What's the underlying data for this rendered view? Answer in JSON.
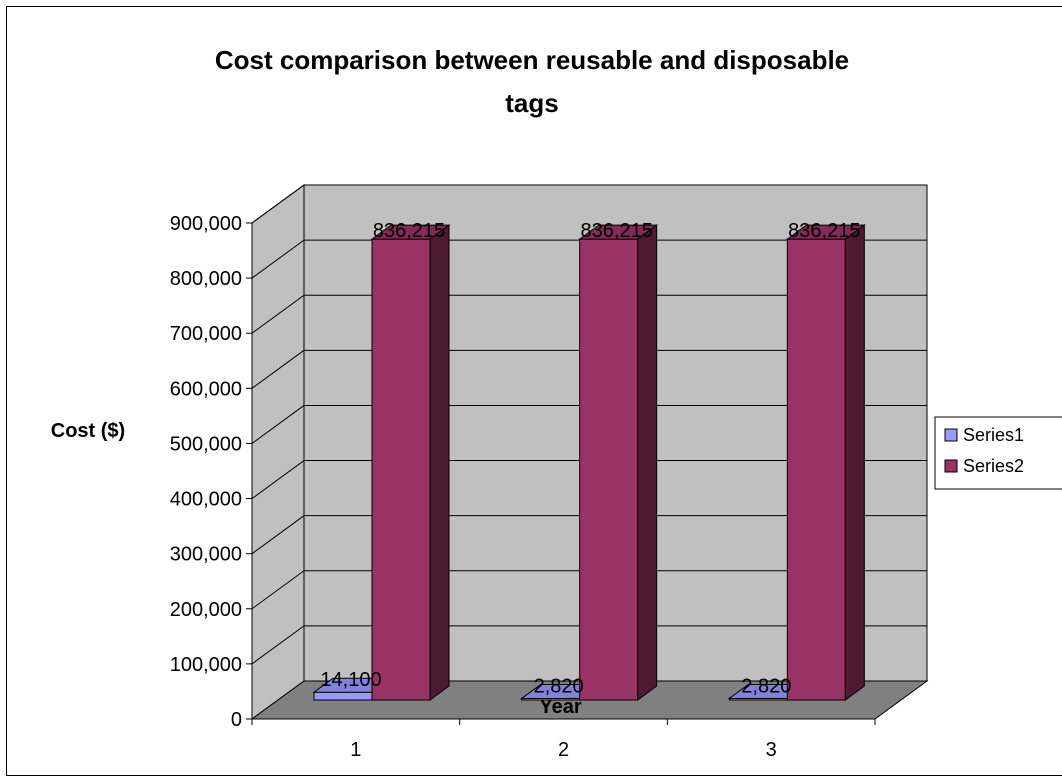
{
  "chart_data": {
    "type": "bar",
    "title_lines": [
      "Cost comparison between reusable and disposable",
      "tags"
    ],
    "xlabel": "Year",
    "ylabel": "Cost ($)",
    "categories": [
      "1",
      "2",
      "3"
    ],
    "series": [
      {
        "name": "Series1",
        "values": [
          14100,
          2820,
          2820
        ],
        "color": "#9999ff",
        "data_labels": [
          "14,100",
          "2,820",
          "2,820"
        ]
      },
      {
        "name": "Series2",
        "values": [
          836215,
          836215,
          836215
        ],
        "color": "#993366",
        "data_labels": [
          "836,215",
          "836,215",
          "836,215"
        ]
      }
    ],
    "ylim": [
      0,
      900000
    ],
    "yticks": [
      "0",
      "100,000",
      "200,000",
      "300,000",
      "400,000",
      "500,000",
      "600,000",
      "700,000",
      "800,000",
      "900,000"
    ],
    "grid": true,
    "style": "3d-column",
    "wall_color": "#c0c0c0",
    "floor_color": "#808080",
    "legend_position": "right"
  }
}
